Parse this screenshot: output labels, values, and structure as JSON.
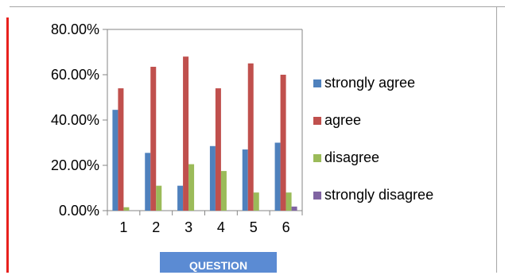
{
  "chart_data": {
    "type": "bar",
    "categories": [
      "1",
      "2",
      "3",
      "4",
      "5",
      "6"
    ],
    "series": [
      {
        "name": "strongly agree",
        "color": "#4f81bd",
        "values": [
          44.5,
          25.5,
          11.0,
          28.5,
          27.0,
          30.0
        ]
      },
      {
        "name": "agree",
        "color": "#c0504d",
        "values": [
          54.0,
          63.5,
          68.0,
          54.0,
          65.0,
          60.0
        ]
      },
      {
        "name": "disagree",
        "color": "#9bbb59",
        "values": [
          1.5,
          11.0,
          20.5,
          17.5,
          8.0,
          8.0
        ]
      },
      {
        "name": "strongly disagree",
        "color": "#8064a2",
        "values": [
          0.0,
          0.0,
          0.0,
          0.0,
          0.0,
          1.8
        ]
      }
    ],
    "yticks": [
      "0.00%",
      "20.00%",
      "40.00%",
      "60.00%",
      "80.00%"
    ],
    "ytick_values": [
      0,
      20,
      40,
      60,
      80
    ],
    "ylim": [
      0,
      80
    ],
    "xlabel": "QUESTION",
    "ylabel": "",
    "title": "",
    "grid": false,
    "legend_position": "right"
  }
}
